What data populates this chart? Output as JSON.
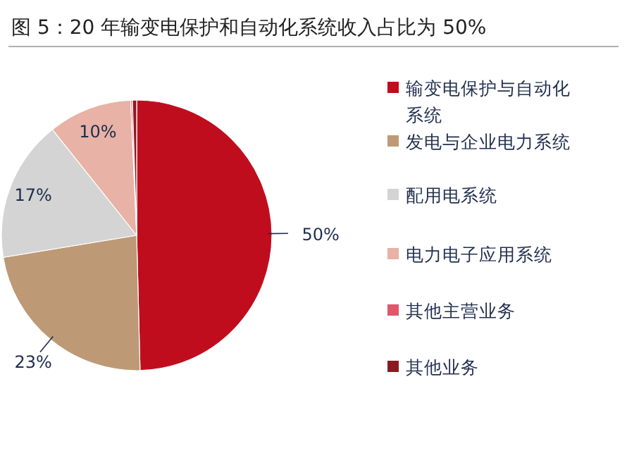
{
  "chart_data": {
    "type": "pie",
    "title": "图 5：20 年输变电保护和自动化系统收入占比为 50%",
    "categories": [
      "输变电保护与自动化系统",
      "发电与企业电力系统",
      "配用电系统",
      "电力电子应用系统",
      "其他主营业务",
      "其他业务"
    ],
    "values": [
      49.6,
      22.8,
      16.9,
      10.0,
      0.2,
      0.5
    ],
    "value_labels": [
      "50%",
      "23%",
      "17%",
      "10%",
      null,
      null
    ],
    "colors": [
      "#c00d1e",
      "#bd9a75",
      "#d4d4d4",
      "#e8b2a6",
      "#e0566a",
      "#8b1a1f"
    ],
    "legend": "right"
  }
}
